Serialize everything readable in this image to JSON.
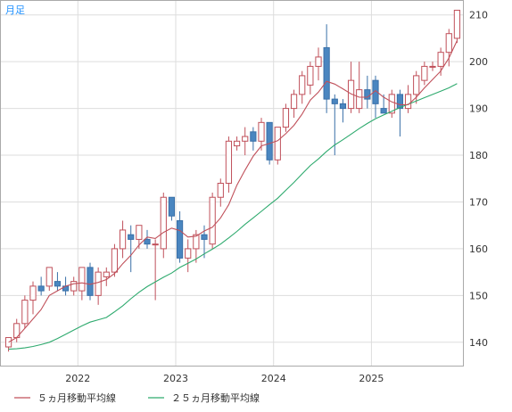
{
  "period_label": "月足",
  "legend": [
    {
      "label": "５ヵ月移動平均線",
      "color": "#c0505a"
    },
    {
      "label": "２５ヵ月移動平均線",
      "color": "#2eaa6e"
    }
  ],
  "colors": {
    "up": "#c0505a",
    "down_fill": "#4a86c0",
    "down_stroke": "#3a70a8",
    "grid": "#dddddd",
    "border": "#aaaaaa"
  },
  "chart_data": {
    "type": "candlestick",
    "y_ticks": [
      "140",
      "150",
      "160",
      "170",
      "180",
      "190",
      "200",
      "210"
    ],
    "ylim": [
      135,
      213
    ],
    "x_ticks": [
      {
        "label": "2022",
        "index": 9
      },
      {
        "label": "2023",
        "index": 21
      },
      {
        "label": "2024",
        "index": 33
      },
      {
        "label": "2025",
        "index": 45
      }
    ],
    "candles": [
      {
        "o": 139,
        "h": 141,
        "l": 138,
        "c": 141
      },
      {
        "o": 141,
        "h": 145,
        "l": 140,
        "c": 144
      },
      {
        "o": 144,
        "h": 150,
        "l": 143,
        "c": 149
      },
      {
        "o": 149,
        "h": 153,
        "l": 146,
        "c": 152
      },
      {
        "o": 152,
        "h": 154,
        "l": 150,
        "c": 151
      },
      {
        "o": 152,
        "h": 156,
        "l": 151,
        "c": 156
      },
      {
        "o": 153,
        "h": 155,
        "l": 151,
        "c": 152
      },
      {
        "o": 152,
        "h": 154,
        "l": 150,
        "c": 151
      },
      {
        "o": 151,
        "h": 154,
        "l": 150,
        "c": 153
      },
      {
        "o": 151,
        "h": 156,
        "l": 149,
        "c": 156
      },
      {
        "o": 156,
        "h": 157,
        "l": 149,
        "c": 150
      },
      {
        "o": 150,
        "h": 156,
        "l": 148,
        "c": 155
      },
      {
        "o": 154,
        "h": 156,
        "l": 152,
        "c": 155
      },
      {
        "o": 155,
        "h": 161,
        "l": 154,
        "c": 160
      },
      {
        "o": 160,
        "h": 166,
        "l": 158,
        "c": 164
      },
      {
        "o": 163,
        "h": 165,
        "l": 155,
        "c": 162
      },
      {
        "o": 162,
        "h": 165,
        "l": 160,
        "c": 165
      },
      {
        "o": 162,
        "h": 164,
        "l": 160,
        "c": 161
      },
      {
        "o": 161,
        "h": 162,
        "l": 149,
        "c": 161
      },
      {
        "o": 160,
        "h": 172,
        "l": 158,
        "c": 171
      },
      {
        "o": 171,
        "h": 171,
        "l": 166,
        "c": 167
      },
      {
        "o": 166,
        "h": 168,
        "l": 157,
        "c": 158
      },
      {
        "o": 158,
        "h": 162,
        "l": 155,
        "c": 160
      },
      {
        "o": 160,
        "h": 164,
        "l": 157,
        "c": 163
      },
      {
        "o": 163,
        "h": 165,
        "l": 158,
        "c": 162
      },
      {
        "o": 161,
        "h": 172,
        "l": 160,
        "c": 171
      },
      {
        "o": 171,
        "h": 175,
        "l": 169,
        "c": 174
      },
      {
        "o": 174,
        "h": 184,
        "l": 172,
        "c": 183
      },
      {
        "o": 182,
        "h": 184,
        "l": 181,
        "c": 183
      },
      {
        "o": 183,
        "h": 186,
        "l": 180,
        "c": 184
      },
      {
        "o": 185,
        "h": 186,
        "l": 181,
        "c": 183
      },
      {
        "o": 183,
        "h": 188,
        "l": 181,
        "c": 187
      },
      {
        "o": 187,
        "h": 187,
        "l": 178,
        "c": 179
      },
      {
        "o": 179,
        "h": 186,
        "l": 178,
        "c": 186
      },
      {
        "o": 186,
        "h": 191,
        "l": 185,
        "c": 190
      },
      {
        "o": 190,
        "h": 194,
        "l": 188,
        "c": 193
      },
      {
        "o": 193,
        "h": 198,
        "l": 191,
        "c": 197
      },
      {
        "o": 195,
        "h": 200,
        "l": 193,
        "c": 199
      },
      {
        "o": 199,
        "h": 203,
        "l": 196,
        "c": 201
      },
      {
        "o": 203,
        "h": 208,
        "l": 189,
        "c": 192
      },
      {
        "o": 192,
        "h": 193,
        "l": 180,
        "c": 191
      },
      {
        "o": 191,
        "h": 192,
        "l": 187,
        "c": 190
      },
      {
        "o": 190,
        "h": 200,
        "l": 189,
        "c": 196
      },
      {
        "o": 190,
        "h": 200,
        "l": 189,
        "c": 194
      },
      {
        "o": 194,
        "h": 197,
        "l": 190,
        "c": 192
      },
      {
        "o": 196,
        "h": 197,
        "l": 188,
        "c": 191
      },
      {
        "o": 190,
        "h": 193,
        "l": 189,
        "c": 189
      },
      {
        "o": 189,
        "h": 194,
        "l": 188,
        "c": 193
      },
      {
        "o": 193,
        "h": 194,
        "l": 184,
        "c": 190
      },
      {
        "o": 190,
        "h": 195,
        "l": 189,
        "c": 193
      },
      {
        "o": 193,
        "h": 198,
        "l": 191,
        "c": 197
      },
      {
        "o": 196,
        "h": 200,
        "l": 195,
        "c": 199
      },
      {
        "o": 199,
        "h": 200,
        "l": 198,
        "c": 199
      },
      {
        "o": 199,
        "h": 203,
        "l": 197,
        "c": 202
      },
      {
        "o": 202,
        "h": 207,
        "l": 199,
        "c": 206
      },
      {
        "o": 205,
        "h": 211,
        "l": 204,
        "c": 211
      }
    ],
    "sma5": [
      140,
      141,
      143,
      145,
      147,
      150,
      151,
      152,
      152.5,
      152.7,
      152.4,
      152.8,
      153.4,
      154.7,
      156.8,
      158.6,
      160.8,
      162.5,
      162.2,
      163.5,
      164.4,
      163.9,
      162.5,
      162.7,
      163.8,
      164.6,
      166.6,
      169.4,
      173.6,
      176.8,
      179.8,
      182,
      182.5,
      183.1,
      184.6,
      186.4,
      188.8,
      191.8,
      193.5,
      195.8,
      195.2,
      194.2,
      193.1,
      192.4,
      192.4,
      193.8,
      192.4,
      191.4,
      190.8,
      190.8,
      192.4,
      194.4,
      196.2,
      198,
      200.8,
      204.5
    ],
    "sma25": [
      138.5,
      138.6,
      138.8,
      139.1,
      139.5,
      140,
      140.8,
      141.7,
      142.6,
      143.5,
      144.3,
      144.8,
      145.3,
      146.5,
      147.8,
      149.3,
      150.7,
      151.9,
      152.9,
      153.9,
      154.8,
      156,
      156.9,
      157.8,
      158.9,
      159.9,
      161,
      162.3,
      163.7,
      165.2,
      166.6,
      168,
      169.4,
      170.8,
      172.5,
      174.2,
      176,
      177.8,
      179.2,
      180.8,
      182.2,
      183.3,
      184.5,
      185.7,
      186.8,
      187.8,
      188.6,
      189.4,
      190.2,
      190.9,
      191.6,
      192.3,
      193,
      193.7,
      194.4,
      195.3
    ]
  }
}
